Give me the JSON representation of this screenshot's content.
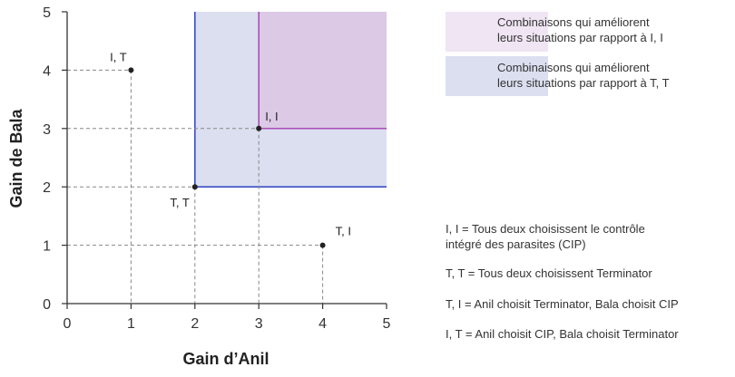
{
  "colors": {
    "region_ii_fill": "#dbc9e6",
    "region_tt_fill": "#dcdff0",
    "region_ii_line": "#a33fb0",
    "region_tt_line": "#3a4fc4",
    "legend_ii_fill": "#efe5f3",
    "legend_tt_fill": "#dcdff0",
    "axis": "#333333",
    "guide": "#888888",
    "point": "#222222"
  },
  "legend": [
    {
      "id": "ii",
      "line1": "Combinaisons qui améliorent",
      "line2": "leurs situations par rapport à I, I"
    },
    {
      "id": "tt",
      "line1": "Combinaisons qui améliorent",
      "line2": "leurs situations par rapport à T, T"
    }
  ],
  "key": {
    "ii_line1": "I, I = Tous deux choisissent le contrôle",
    "ii_line2": "intégré des parasites (CIP)",
    "tt": "T, T = Tous deux choisissent Terminator",
    "ti": "T, I = Anil choisit Terminator, Bala choisit CIP",
    "it": "I, T = Anil choisit CIP, Bala choisit Terminator"
  },
  "chart_data": {
    "type": "scatter",
    "xlabel": "Gain d’Anil",
    "ylabel": "Gain de Bala",
    "xlim": [
      0,
      5
    ],
    "ylim": [
      0,
      5
    ],
    "xticks": [
      "0",
      "1",
      "2",
      "3",
      "4",
      "5"
    ],
    "yticks": [
      "0",
      "1",
      "2",
      "3",
      "4",
      "5"
    ],
    "points": [
      {
        "label": "I, T",
        "x": 1,
        "y": 4
      },
      {
        "label": "I, I",
        "x": 3,
        "y": 3
      },
      {
        "label": "T, T",
        "x": 2,
        "y": 2
      },
      {
        "label": "T, I",
        "x": 4,
        "y": 1
      }
    ],
    "regions": [
      {
        "name": "Combinaisons qui améliorent leurs situations par rapport à T, T",
        "x_min": 2,
        "y_min": 2
      },
      {
        "name": "Combinaisons qui améliorent leurs situations par rapport à I, I",
        "x_min": 3,
        "y_min": 3
      }
    ]
  }
}
